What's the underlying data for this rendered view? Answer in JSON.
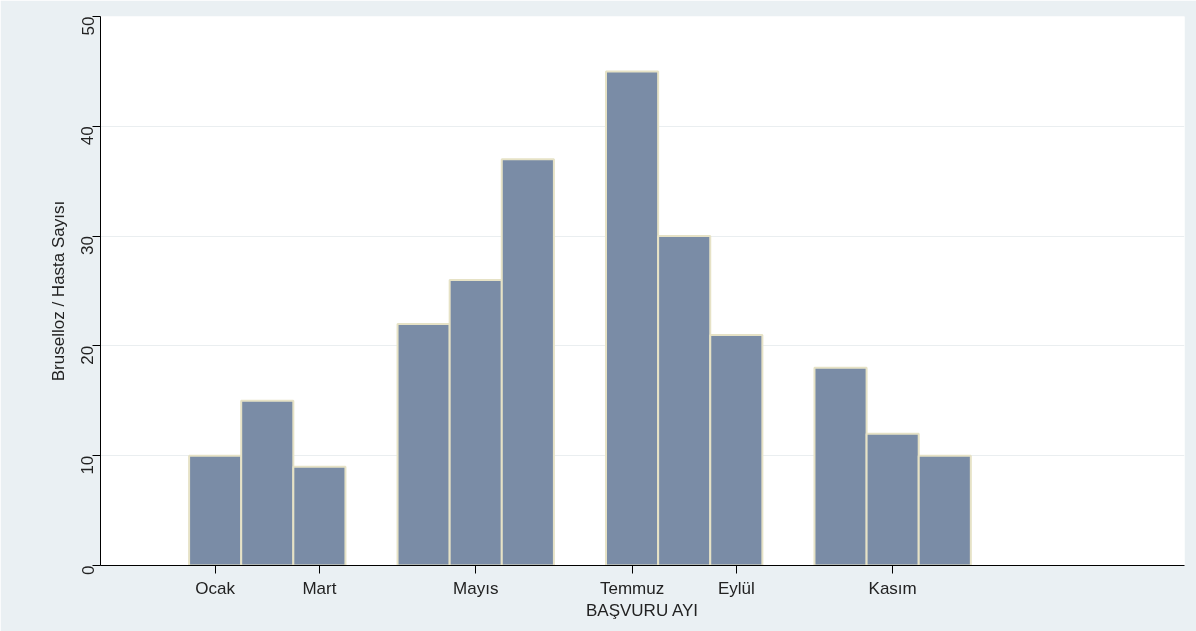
{
  "chart_data": {
    "type": "bar",
    "xlabel": "BAŞVURU AYI",
    "ylabel": "Bruselloz / Hasta Sayısı",
    "categories": [
      "Ocak",
      null,
      "Mart",
      null,
      null,
      "Mayıs",
      null,
      null,
      "Temmuz",
      null,
      "Eylül",
      null,
      null,
      "Kasım",
      null
    ],
    "values": [
      10,
      15,
      9,
      null,
      22,
      26,
      37,
      null,
      45,
      30,
      21,
      null,
      18,
      12,
      10
    ],
    "color": "#7a8ca6",
    "ylim": [
      0,
      50
    ],
    "yticks": [
      0,
      10,
      20,
      30,
      40,
      50
    ],
    "grid": "y"
  }
}
